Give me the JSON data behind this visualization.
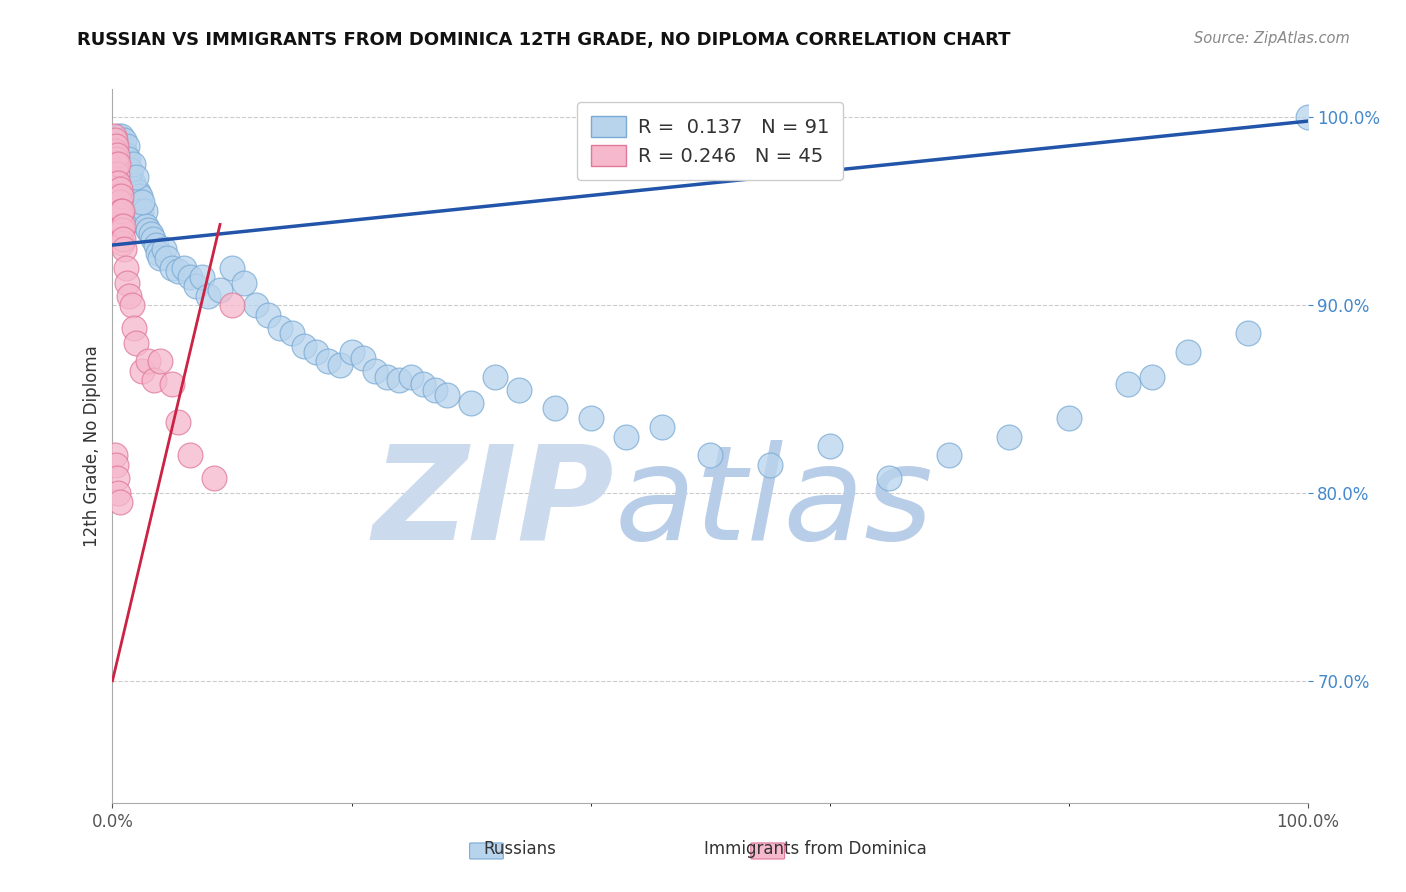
{
  "title": "RUSSIAN VS IMMIGRANTS FROM DOMINICA 12TH GRADE, NO DIPLOMA CORRELATION CHART",
  "source": "Source: ZipAtlas.com",
  "ylabel": "12th Grade, No Diploma",
  "xlim": [
    0.0,
    1.0
  ],
  "ylim": [
    0.635,
    1.015
  ],
  "yticks": [
    0.7,
    0.8,
    0.9,
    1.0
  ],
  "ytick_labels": [
    "70.0%",
    "80.0%",
    "90.0%",
    "100.0%"
  ],
  "xtick_labels": [
    "0.0%",
    "100.0%"
  ],
  "xticks": [
    0.0,
    1.0
  ],
  "legend_line1": "R =  0.137   N = 91",
  "legend_line2": "R = 0.246   N = 45",
  "legend_label_blue": "Russians",
  "legend_label_pink": "Immigrants from Dominica",
  "blue_fill": "#b8d4ed",
  "blue_edge": "#7aaad4",
  "pink_fill": "#f5b8cc",
  "pink_edge": "#e07898",
  "trend_blue": "#2255aa",
  "trend_pink": "#cc2244",
  "blue_trend_start_y": 0.932,
  "blue_trend_end_y": 0.998,
  "pink_trend_start_y": 0.7,
  "pink_trend_end_y": 0.943,
  "pink_trend_end_x": 0.09,
  "background_color": "#ffffff",
  "watermark_zip": "ZIP",
  "watermark_atlas": "atlas",
  "watermark_color_zip": "#ccdaee",
  "watermark_color_atlas": "#b8cde8",
  "rus_x": [
    0.005,
    0.007,
    0.008,
    0.009,
    0.01,
    0.01,
    0.011,
    0.011,
    0.012,
    0.012,
    0.013,
    0.013,
    0.014,
    0.015,
    0.015,
    0.016,
    0.017,
    0.018,
    0.019,
    0.02,
    0.021,
    0.022,
    0.023,
    0.024,
    0.025,
    0.027,
    0.028,
    0.03,
    0.032,
    0.034,
    0.036,
    0.038,
    0.04,
    0.043,
    0.046,
    0.05,
    0.055,
    0.06,
    0.065,
    0.07,
    0.075,
    0.08,
    0.09,
    0.1,
    0.11,
    0.12,
    0.13,
    0.14,
    0.15,
    0.16,
    0.17,
    0.18,
    0.19,
    0.2,
    0.21,
    0.22,
    0.23,
    0.24,
    0.25,
    0.26,
    0.27,
    0.28,
    0.3,
    0.32,
    0.34,
    0.37,
    0.4,
    0.43,
    0.46,
    0.5,
    0.55,
    0.6,
    0.65,
    0.7,
    0.75,
    0.8,
    0.85,
    0.87,
    0.9,
    0.95,
    1.0,
    0.007,
    0.009,
    0.01,
    0.011,
    0.012,
    0.013,
    0.015,
    0.017,
    0.02,
    0.025
  ],
  "rus_y": [
    0.99,
    0.98,
    0.985,
    0.978,
    0.975,
    0.982,
    0.97,
    0.977,
    0.968,
    0.974,
    0.965,
    0.972,
    0.968,
    0.962,
    0.97,
    0.96,
    0.965,
    0.958,
    0.962,
    0.955,
    0.96,
    0.955,
    0.958,
    0.95,
    0.945,
    0.95,
    0.942,
    0.94,
    0.938,
    0.935,
    0.932,
    0.928,
    0.925,
    0.93,
    0.925,
    0.92,
    0.918,
    0.92,
    0.915,
    0.91,
    0.915,
    0.905,
    0.908,
    0.92,
    0.912,
    0.9,
    0.895,
    0.888,
    0.885,
    0.878,
    0.875,
    0.87,
    0.868,
    0.875,
    0.872,
    0.865,
    0.862,
    0.86,
    0.862,
    0.858,
    0.855,
    0.852,
    0.848,
    0.862,
    0.855,
    0.845,
    0.84,
    0.83,
    0.835,
    0.82,
    0.815,
    0.825,
    0.808,
    0.82,
    0.83,
    0.84,
    0.858,
    0.862,
    0.875,
    0.885,
    1.0,
    0.99,
    0.985,
    0.988,
    0.98,
    0.985,
    0.978,
    0.972,
    0.975,
    0.968,
    0.955
  ],
  "dom_x": [
    0.001,
    0.002,
    0.002,
    0.003,
    0.003,
    0.003,
    0.004,
    0.004,
    0.004,
    0.005,
    0.005,
    0.005,
    0.005,
    0.006,
    0.006,
    0.006,
    0.007,
    0.007,
    0.007,
    0.008,
    0.008,
    0.008,
    0.009,
    0.009,
    0.01,
    0.011,
    0.012,
    0.014,
    0.016,
    0.018,
    0.02,
    0.025,
    0.03,
    0.035,
    0.04,
    0.05,
    0.055,
    0.065,
    0.085,
    0.1,
    0.002,
    0.003,
    0.004,
    0.005,
    0.006
  ],
  "dom_y": [
    0.99,
    0.988,
    0.982,
    0.985,
    0.978,
    0.975,
    0.98,
    0.97,
    0.965,
    0.975,
    0.965,
    0.958,
    0.952,
    0.962,
    0.955,
    0.948,
    0.958,
    0.95,
    0.942,
    0.95,
    0.94,
    0.933,
    0.942,
    0.935,
    0.93,
    0.92,
    0.912,
    0.905,
    0.9,
    0.888,
    0.88,
    0.865,
    0.87,
    0.86,
    0.87,
    0.858,
    0.838,
    0.82,
    0.808,
    0.9,
    0.82,
    0.815,
    0.808,
    0.8,
    0.795
  ]
}
